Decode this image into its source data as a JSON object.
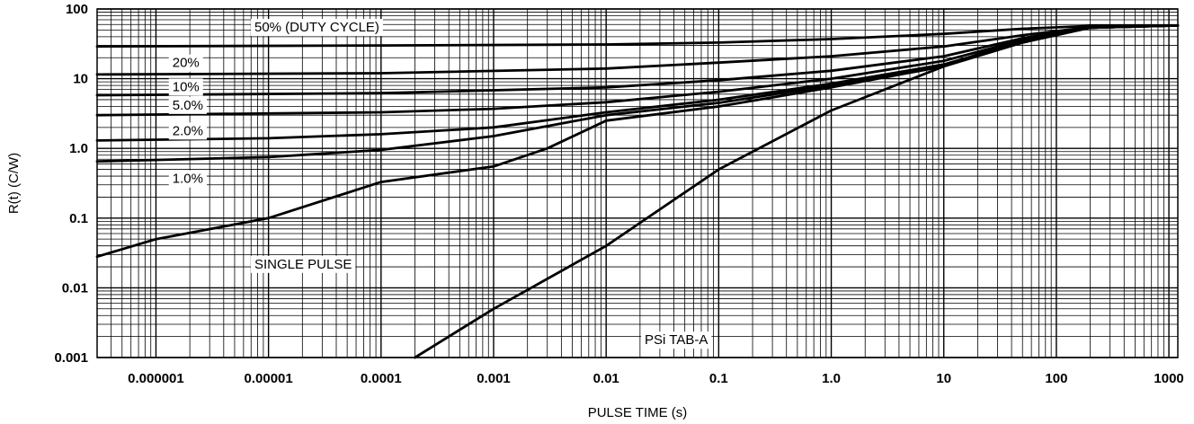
{
  "chart_data": {
    "type": "line",
    "title": "",
    "xlabel": "PULSE TIME (s)",
    "ylabel": "R(t) (C/W)",
    "x_scale": "log",
    "y_scale": "log",
    "xlim": [
      3e-07,
      1200
    ],
    "ylim": [
      0.001,
      100
    ],
    "grid": true,
    "x_ticks": [
      {
        "value": 1e-06,
        "label": "0.000001"
      },
      {
        "value": 1e-05,
        "label": "0.00001"
      },
      {
        "value": 0.0001,
        "label": "0.0001"
      },
      {
        "value": 0.001,
        "label": "0.001"
      },
      {
        "value": 0.01,
        "label": "0.01"
      },
      {
        "value": 0.1,
        "label": "0.1"
      },
      {
        "value": 1,
        "label": "1.0"
      },
      {
        "value": 10,
        "label": "10"
      },
      {
        "value": 100,
        "label": "100"
      },
      {
        "value": 1000,
        "label": "1000"
      }
    ],
    "y_ticks": [
      {
        "value": 0.001,
        "label": "0.001"
      },
      {
        "value": 0.01,
        "label": "0.01"
      },
      {
        "value": 0.1,
        "label": "0.1"
      },
      {
        "value": 1,
        "label": "1.0"
      },
      {
        "value": 10,
        "label": "10"
      },
      {
        "value": 100,
        "label": "100"
      }
    ],
    "series": [
      {
        "name": "50% (DUTY CYCLE)",
        "label_pos": {
          "x": 7.5e-06,
          "y": 55
        },
        "points": [
          [
            3e-07,
            29
          ],
          [
            0.0001,
            30
          ],
          [
            0.01,
            31
          ],
          [
            0.1,
            33
          ],
          [
            1,
            37
          ],
          [
            10,
            44
          ],
          [
            50,
            52
          ],
          [
            200,
            57
          ],
          [
            1200,
            58
          ]
        ]
      },
      {
        "name": "20%",
        "label_pos": {
          "x": 1.4e-06,
          "y": 17
        },
        "points": [
          [
            3e-07,
            11.5
          ],
          [
            0.0001,
            12
          ],
          [
            0.01,
            14
          ],
          [
            0.1,
            17
          ],
          [
            1,
            21
          ],
          [
            10,
            29
          ],
          [
            50,
            42
          ],
          [
            200,
            55
          ],
          [
            1200,
            58
          ]
        ]
      },
      {
        "name": "10%",
        "label_pos": {
          "x": 1.4e-06,
          "y": 7.7
        },
        "points": [
          [
            3e-07,
            5.8
          ],
          [
            0.0001,
            6.2
          ],
          [
            0.01,
            7.5
          ],
          [
            0.1,
            9.5
          ],
          [
            1,
            13
          ],
          [
            10,
            21
          ],
          [
            50,
            38
          ],
          [
            200,
            54
          ],
          [
            1200,
            58
          ]
        ]
      },
      {
        "name": "5.0%",
        "label_pos": {
          "x": 1.4e-06,
          "y": 4.2
        },
        "points": [
          [
            3e-07,
            3
          ],
          [
            0.0001,
            3.3
          ],
          [
            0.001,
            3.7
          ],
          [
            0.01,
            4.6
          ],
          [
            0.1,
            6.5
          ],
          [
            1,
            10
          ],
          [
            10,
            18
          ],
          [
            50,
            36
          ],
          [
            200,
            54
          ],
          [
            1200,
            58
          ]
        ]
      },
      {
        "name": "2.0%",
        "label_pos": {
          "x": 1.4e-06,
          "y": 1.8
        },
        "points": [
          [
            3e-07,
            1.3
          ],
          [
            1e-05,
            1.4
          ],
          [
            0.0001,
            1.6
          ],
          [
            0.001,
            2
          ],
          [
            0.01,
            3.3
          ],
          [
            0.1,
            5
          ],
          [
            1,
            8.5
          ],
          [
            10,
            16
          ],
          [
            50,
            34
          ],
          [
            200,
            54
          ],
          [
            1200,
            58
          ]
        ]
      },
      {
        "name": "1.0%",
        "label_pos": {
          "x": 1.4e-06,
          "y": 0.37
        },
        "points": [
          [
            3e-07,
            0.65
          ],
          [
            1e-05,
            0.75
          ],
          [
            0.0001,
            0.95
          ],
          [
            0.001,
            1.5
          ],
          [
            0.01,
            3
          ],
          [
            0.1,
            4.5
          ],
          [
            1,
            8
          ],
          [
            10,
            16
          ],
          [
            50,
            33
          ],
          [
            200,
            54
          ],
          [
            1200,
            58
          ]
        ]
      },
      {
        "name": "SINGLE PULSE",
        "label_pos": {
          "x": 7.5e-06,
          "y": 0.022
        },
        "points": [
          [
            3e-07,
            0.028
          ],
          [
            1e-06,
            0.05
          ],
          [
            1e-05,
            0.1
          ],
          [
            0.0001,
            0.33
          ],
          [
            0.001,
            0.55
          ],
          [
            0.003,
            1
          ],
          [
            0.01,
            2.5
          ],
          [
            0.1,
            4
          ],
          [
            1,
            7.5
          ],
          [
            10,
            15
          ],
          [
            50,
            33
          ],
          [
            200,
            54
          ],
          [
            1200,
            58
          ]
        ]
      },
      {
        "name": "PSi TAB-A",
        "label_pos": {
          "x": 0.022,
          "y": 0.0018
        },
        "points": [
          [
            0.0002,
            0.001
          ],
          [
            0.001,
            0.005
          ],
          [
            0.01,
            0.04
          ],
          [
            0.1,
            0.5
          ],
          [
            1,
            3.5
          ],
          [
            10,
            15
          ],
          [
            50,
            38
          ],
          [
            200,
            55
          ],
          [
            1200,
            58
          ]
        ]
      }
    ]
  }
}
